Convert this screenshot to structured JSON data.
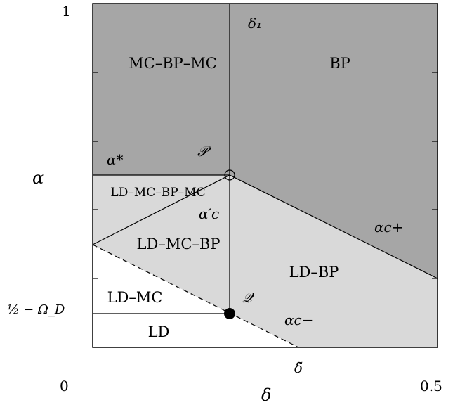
{
  "colors": {
    "dark_region": "#a6a6a6",
    "light_region": "#d9d9d9",
    "white_region": "#ffffff",
    "line": "#000000"
  },
  "axes": {
    "x_label": "δ",
    "y_label": "α",
    "x_min_tick": "0",
    "x_max_tick": "0.5",
    "y_max_tick": "1",
    "y_special_tick": "½ − Ω_D",
    "x_special_tick": "δ̃"
  },
  "regions": {
    "mc_bp_mc": "MC–BP–MC",
    "bp": "BP",
    "ld_mc_bp_mc": "LD–MC–BP–MC",
    "ld_mc_bp": "LD–MC–BP",
    "ld_bp": "LD–BP",
    "ld_mc": "LD–MC",
    "ld": "LD"
  },
  "curves": {
    "delta1": "δ₁",
    "alpha_star": "α*",
    "alpha_c_prime": "α′c",
    "alpha_c_plus": "αc+",
    "alpha_c_minus": "αc−"
  },
  "points": {
    "P": "𝒫",
    "Q": "𝒬"
  }
}
